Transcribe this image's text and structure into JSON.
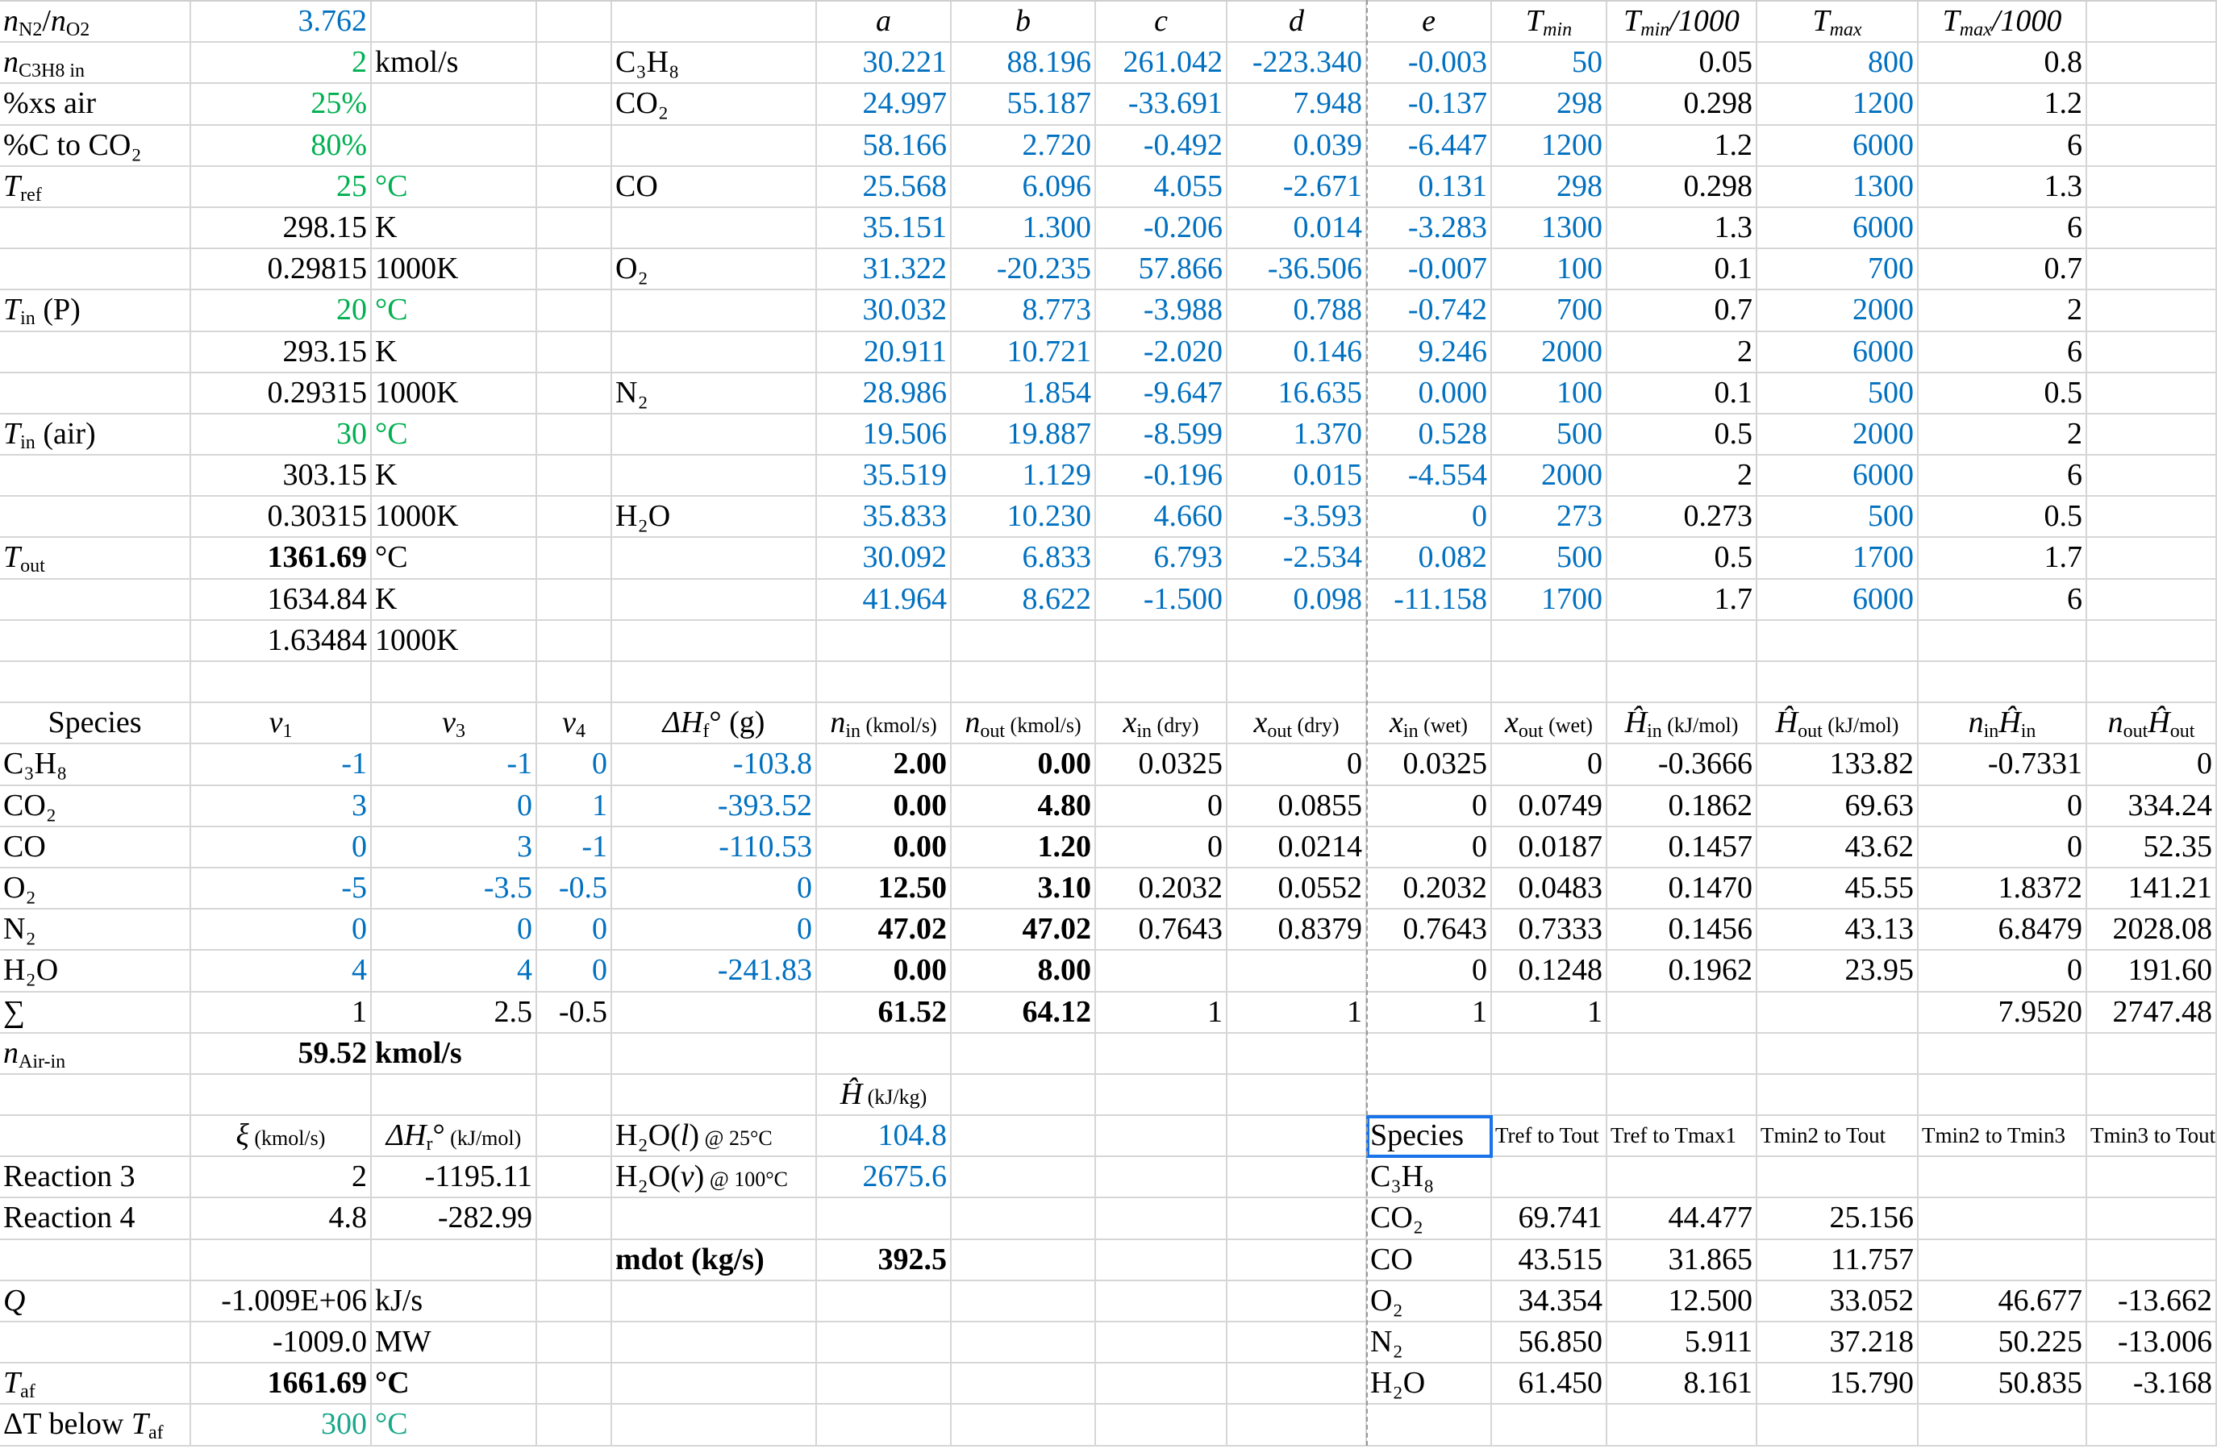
{
  "colors": {
    "blue": "#0070C0",
    "green": "#00B050",
    "teal": "#1AA88A",
    "selection": "#1A73E8"
  },
  "sheet": {
    "rows": [
      [
        [
          "n",
          "N2",
          "/",
          "n",
          "O2"
        ],
        "3.762",
        "",
        "",
        "",
        "a",
        "b",
        "c",
        "d",
        "e",
        [
          "T",
          "min"
        ],
        [
          "T",
          "min",
          "/1000"
        ],
        [
          "T",
          "max"
        ],
        [
          "T",
          "max",
          "/1000"
        ],
        ""
      ],
      [
        [
          "n",
          "C3H8 in"
        ],
        "2",
        "kmol/s",
        "",
        "C₃H₈",
        "30.221",
        "88.196",
        "261.042",
        "-223.340",
        "-0.003",
        "50",
        "0.05",
        "800",
        "0.8",
        ""
      ],
      [
        "%xs air",
        "25%",
        "",
        "",
        "CO₂",
        "24.997",
        "55.187",
        "-33.691",
        "7.948",
        "-0.137",
        "298",
        "0.298",
        "1200",
        "1.2",
        ""
      ],
      [
        "%C to CO₂",
        "80%",
        "",
        "",
        "",
        "58.166",
        "2.720",
        "-0.492",
        "0.039",
        "-6.447",
        "1200",
        "1.2",
        "6000",
        "6",
        ""
      ],
      [
        [
          "T",
          "ref"
        ],
        "25",
        "°C",
        "",
        "CO",
        "25.568",
        "6.096",
        "4.055",
        "-2.671",
        "0.131",
        "298",
        "0.298",
        "1300",
        "1.3",
        ""
      ],
      [
        "",
        "298.15",
        "K",
        "",
        "",
        "35.151",
        "1.300",
        "-0.206",
        "0.014",
        "-3.283",
        "1300",
        "1.3",
        "6000",
        "6",
        ""
      ],
      [
        "",
        "0.29815",
        "1000K",
        "",
        "O₂",
        "31.322",
        "-20.235",
        "57.866",
        "-36.506",
        "-0.007",
        "100",
        "0.1",
        "700",
        "0.7",
        ""
      ],
      [
        [
          "T",
          "in",
          " (P)"
        ],
        "20",
        "°C",
        "",
        "",
        "30.032",
        "8.773",
        "-3.988",
        "0.788",
        "-0.742",
        "700",
        "0.7",
        "2000",
        "2",
        ""
      ],
      [
        "",
        "293.15",
        "K",
        "",
        "",
        "20.911",
        "10.721",
        "-2.020",
        "0.146",
        "9.246",
        "2000",
        "2",
        "6000",
        "6",
        ""
      ],
      [
        "",
        "0.29315",
        "1000K",
        "",
        "N₂",
        "28.986",
        "1.854",
        "-9.647",
        "16.635",
        "0.000",
        "100",
        "0.1",
        "500",
        "0.5",
        ""
      ],
      [
        [
          "T",
          "in",
          " (air)"
        ],
        "30",
        "°C",
        "",
        "",
        "19.506",
        "19.887",
        "-8.599",
        "1.370",
        "0.528",
        "500",
        "0.5",
        "2000",
        "2",
        ""
      ],
      [
        "",
        "303.15",
        "K",
        "",
        "",
        "35.519",
        "1.129",
        "-0.196",
        "0.015",
        "-4.554",
        "2000",
        "2",
        "6000",
        "6",
        ""
      ],
      [
        "",
        "0.30315",
        "1000K",
        "",
        "H₂O",
        "35.833",
        "10.230",
        "4.660",
        "-3.593",
        "0",
        "273",
        "0.273",
        "500",
        "0.5",
        ""
      ],
      [
        [
          "T",
          "out"
        ],
        "1361.69",
        "°C",
        "",
        "",
        "30.092",
        "6.833",
        "6.793",
        "-2.534",
        "0.082",
        "500",
        "0.5",
        "1700",
        "1.7",
        ""
      ],
      [
        "",
        "1634.84",
        "K",
        "",
        "",
        "41.964",
        "8.622",
        "-1.500",
        "0.098",
        "-11.158",
        "1700",
        "1.7",
        "6000",
        "6",
        ""
      ],
      [
        "",
        "1.63484",
        "1000K",
        "",
        "",
        "",
        "",
        "",
        "",
        "",
        "",
        "",
        "",
        "",
        ""
      ],
      [
        "",
        "",
        "",
        "",
        "",
        "",
        "",
        "",
        "",
        "",
        "",
        "",
        "",
        "",
        ""
      ],
      [
        "Species",
        [
          "ν",
          "1"
        ],
        [
          "ν",
          "3"
        ],
        [
          "ν",
          "4"
        ],
        [
          "ΔH",
          "f",
          "°",
          " (g)"
        ],
        [
          "n",
          "in",
          " (kmol/s)"
        ],
        [
          "n",
          "out",
          " (kmol/s)"
        ],
        [
          "x",
          "in",
          " (dry)"
        ],
        [
          "x",
          "out",
          " (dry)"
        ],
        [
          "x",
          "in",
          " (wet)"
        ],
        [
          "x",
          "out",
          " (wet)"
        ],
        [
          "Ĥ",
          "in",
          " (kJ/mol)"
        ],
        [
          "Ĥ",
          "out",
          " (kJ/mol)"
        ],
        [
          "n",
          "in",
          "Ĥ",
          "in"
        ],
        [
          "n",
          "out",
          "Ĥ",
          "out"
        ]
      ],
      [
        "C₃H₈",
        "-1",
        "-1",
        "0",
        "-103.8",
        "2.00",
        "0.00",
        "0.0325",
        "0",
        "0.0325",
        "0",
        "-0.3666",
        "133.82",
        "-0.7331",
        "0"
      ],
      [
        "CO₂",
        "3",
        "0",
        "1",
        "-393.52",
        "0.00",
        "4.80",
        "0",
        "0.0855",
        "0",
        "0.0749",
        "0.1862",
        "69.63",
        "0",
        "334.24"
      ],
      [
        "CO",
        "0",
        "3",
        "-1",
        "-110.53",
        "0.00",
        "1.20",
        "0",
        "0.0214",
        "0",
        "0.0187",
        "0.1457",
        "43.62",
        "0",
        "52.35"
      ],
      [
        "O₂",
        "-5",
        "-3.5",
        "-0.5",
        "0",
        "12.50",
        "3.10",
        "0.2032",
        "0.0552",
        "0.2032",
        "0.0483",
        "0.1470",
        "45.55",
        "1.8372",
        "141.21"
      ],
      [
        "N₂",
        "0",
        "0",
        "0",
        "0",
        "47.02",
        "47.02",
        "0.7643",
        "0.8379",
        "0.7643",
        "0.7333",
        "0.1456",
        "43.13",
        "6.8479",
        "2028.08"
      ],
      [
        "H₂O",
        "4",
        "4",
        "0",
        "-241.83",
        "0.00",
        "8.00",
        "",
        "",
        "0",
        "0.1248",
        "0.1962",
        "23.95",
        "0",
        "191.60"
      ],
      [
        "∑",
        "1",
        "2.5",
        "-0.5",
        "",
        "61.52",
        "64.12",
        "1",
        "1",
        "1",
        "1",
        "",
        "",
        "7.9520",
        "2747.48"
      ],
      [
        [
          "n",
          "Air-in"
        ],
        "59.52",
        "kmol/s",
        "",
        "",
        "",
        "",
        "",
        "",
        "",
        "",
        "",
        "",
        "",
        ""
      ],
      [
        "",
        "",
        "",
        "",
        "",
        [
          "Ĥ",
          " (kJ/kg)"
        ],
        "",
        "",
        "",
        "",
        "",
        "",
        "",
        "",
        ""
      ],
      [
        "",
        [
          "ξ",
          " (kmol/s)"
        ],
        [
          "ΔH",
          "r",
          "°",
          " (kJ/mol)"
        ],
        "",
        [
          "H₂O(",
          "l",
          ")",
          " @ 25°C"
        ],
        "104.8",
        "",
        "",
        "",
        "Species",
        "Tref to Tout",
        "Tref to Tmax1",
        "Tmin2 to Tout",
        "Tmin2 to Tmin3",
        "Tmin3 to Tout"
      ],
      [
        "Reaction 3",
        "2",
        "-1195.11",
        "",
        [
          "H₂O(",
          "v",
          ")",
          " @ 100°C"
        ],
        "2675.6",
        "",
        "",
        "",
        "C₃H₈",
        "",
        "",
        "",
        "",
        ""
      ],
      [
        "Reaction 4",
        "4.8",
        "-282.99",
        "",
        "",
        "",
        "",
        "",
        "",
        "CO₂",
        "69.741",
        "44.477",
        "25.156",
        "",
        ""
      ],
      [
        "",
        "",
        "",
        "",
        "mdot (kg/s)",
        "392.5",
        "",
        "",
        "",
        "CO",
        "43.515",
        "31.865",
        "11.757",
        "",
        ""
      ],
      [
        [
          "Q"
        ],
        "-1.009E+06",
        "kJ/s",
        "",
        "",
        "",
        "",
        "",
        "",
        "O₂",
        "34.354",
        "12.500",
        "33.052",
        "46.677",
        "-13.662"
      ],
      [
        "",
        "-1009.0",
        "MW",
        "",
        "",
        "",
        "",
        "",
        "",
        "N₂",
        "56.850",
        "5.911",
        "37.218",
        "50.225",
        "-13.006"
      ],
      [
        [
          "T",
          "af"
        ],
        "1661.69",
        "°C",
        "",
        "",
        "",
        "",
        "",
        "",
        "H₂O",
        "61.450",
        "8.161",
        "15.790",
        "50.835",
        "-3.168"
      ],
      [
        [
          "ΔT below ",
          "T",
          "af"
        ],
        "300",
        "°C",
        "",
        "",
        "",
        "",
        "",
        "",
        "",
        "",
        "",
        "",
        "",
        ""
      ]
    ]
  }
}
